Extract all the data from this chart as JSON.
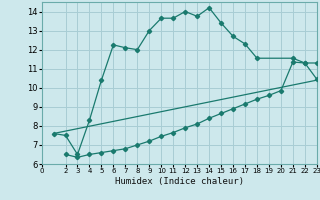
{
  "xlabel": "Humidex (Indice chaleur)",
  "bg_color": "#cde8ec",
  "grid_color": "#a8cdd4",
  "line_color": "#1a7a6e",
  "xlim": [
    0,
    23
  ],
  "ylim": [
    6,
    14.5
  ],
  "yticks": [
    6,
    7,
    8,
    9,
    10,
    11,
    12,
    13,
    14
  ],
  "xticks": [
    0,
    2,
    3,
    4,
    5,
    6,
    7,
    8,
    9,
    10,
    11,
    12,
    13,
    14,
    15,
    16,
    17,
    18,
    19,
    20,
    21,
    22,
    23
  ],
  "curve1_x": [
    1,
    2,
    3,
    4,
    5,
    6,
    7,
    8,
    9,
    10,
    11,
    12,
    13,
    14,
    15,
    16,
    17,
    18,
    21,
    22,
    23
  ],
  "curve1_y": [
    7.6,
    7.5,
    6.5,
    8.3,
    10.4,
    12.25,
    12.1,
    12.0,
    13.0,
    13.65,
    13.65,
    14.0,
    13.75,
    14.2,
    13.4,
    12.7,
    12.3,
    11.55,
    11.55,
    11.3,
    11.3
  ],
  "curve2_x": [
    1,
    23
  ],
  "curve2_y": [
    7.6,
    10.4
  ],
  "curve3_x": [
    2,
    3,
    4,
    5,
    6,
    7,
    8,
    9,
    10,
    11,
    12,
    13,
    14,
    15,
    16,
    17,
    18,
    19,
    20,
    21,
    22,
    23
  ],
  "curve3_y": [
    6.5,
    6.35,
    6.5,
    6.6,
    6.7,
    6.8,
    7.0,
    7.2,
    7.45,
    7.65,
    7.9,
    8.1,
    8.4,
    8.65,
    8.9,
    9.15,
    9.4,
    9.6,
    9.85,
    11.35,
    11.3,
    10.45
  ]
}
